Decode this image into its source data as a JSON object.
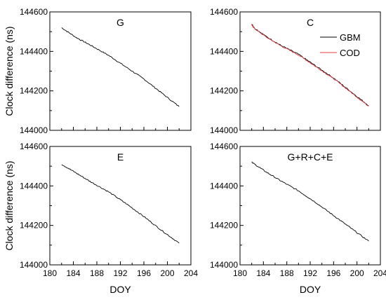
{
  "chart_data": [
    {
      "type": "line",
      "title": "G",
      "xlabel": "",
      "ylabel": "Clock difference (ns)",
      "xlim": [
        180,
        204
      ],
      "ylim": [
        144000,
        144600
      ],
      "x_ticks": [
        "180",
        "184",
        "188",
        "192",
        "196",
        "200",
        "204"
      ],
      "y_ticks": [
        "144000",
        "144200",
        "144400",
        "144600"
      ],
      "series": [
        {
          "color": "#000000",
          "x": [
            182.0,
            184.5,
            187.0,
            190.0,
            193.0,
            196.0,
            199.0,
            202.0
          ],
          "y": [
            144520,
            144470,
            144430,
            144380,
            144320,
            144260,
            144190,
            144120
          ]
        }
      ]
    },
    {
      "type": "line",
      "title": "C",
      "xlabel": "",
      "ylabel": "",
      "xlim": [
        180,
        204
      ],
      "ylim": [
        144000,
        144600
      ],
      "x_ticks": [
        "180",
        "184",
        "188",
        "192",
        "196",
        "200",
        "204"
      ],
      "y_ticks": [
        "144000",
        "144200",
        "144400",
        "144600"
      ],
      "legend": {
        "position": "top-right",
        "entries": [
          "GBM",
          "COD"
        ]
      },
      "series": [
        {
          "name": "GBM",
          "color": "#000000",
          "x": [
            182.0,
            182.4,
            184.5,
            187.0,
            190.0,
            193.0,
            196.0,
            199.0,
            202.0
          ],
          "y": [
            144540,
            144520,
            144475,
            144430,
            144385,
            144325,
            144265,
            144195,
            144125
          ]
        },
        {
          "name": "COD",
          "color": "#e8393c",
          "x": [
            182.0,
            182.4,
            184.5,
            187.0,
            190.0,
            193.0,
            196.0,
            199.0,
            202.0
          ],
          "y": [
            144535,
            144518,
            144472,
            144428,
            144382,
            144322,
            144262,
            144192,
            144122
          ]
        }
      ]
    },
    {
      "type": "line",
      "title": "E",
      "xlabel": "DOY",
      "ylabel": "Clock difference (ns)",
      "xlim": [
        180,
        204
      ],
      "ylim": [
        144000,
        144600
      ],
      "x_ticks": [
        "180",
        "184",
        "188",
        "192",
        "196",
        "200",
        "204"
      ],
      "y_ticks": [
        "144000",
        "144200",
        "144400",
        "144600"
      ],
      "series": [
        {
          "color": "#000000",
          "x": [
            182.0,
            184.5,
            187.0,
            190.0,
            193.0,
            196.0,
            199.0,
            202.0
          ],
          "y": [
            144510,
            144465,
            144420,
            144370,
            144310,
            144245,
            144175,
            144110
          ]
        }
      ]
    },
    {
      "type": "line",
      "title": "G+R+C+E",
      "xlabel": "DOY",
      "ylabel": "",
      "xlim": [
        180,
        204
      ],
      "ylim": [
        144000,
        144600
      ],
      "x_ticks": [
        "180",
        "184",
        "188",
        "192",
        "196",
        "200",
        "204"
      ],
      "y_ticks": [
        "144000",
        "144200",
        "144400",
        "144600"
      ],
      "series": [
        {
          "color": "#000000",
          "x": [
            182.0,
            184.5,
            187.0,
            190.0,
            193.0,
            196.0,
            199.0,
            202.0
          ],
          "y": [
            144520,
            144470,
            144425,
            144375,
            144315,
            144250,
            144185,
            144120
          ]
        }
      ]
    }
  ]
}
